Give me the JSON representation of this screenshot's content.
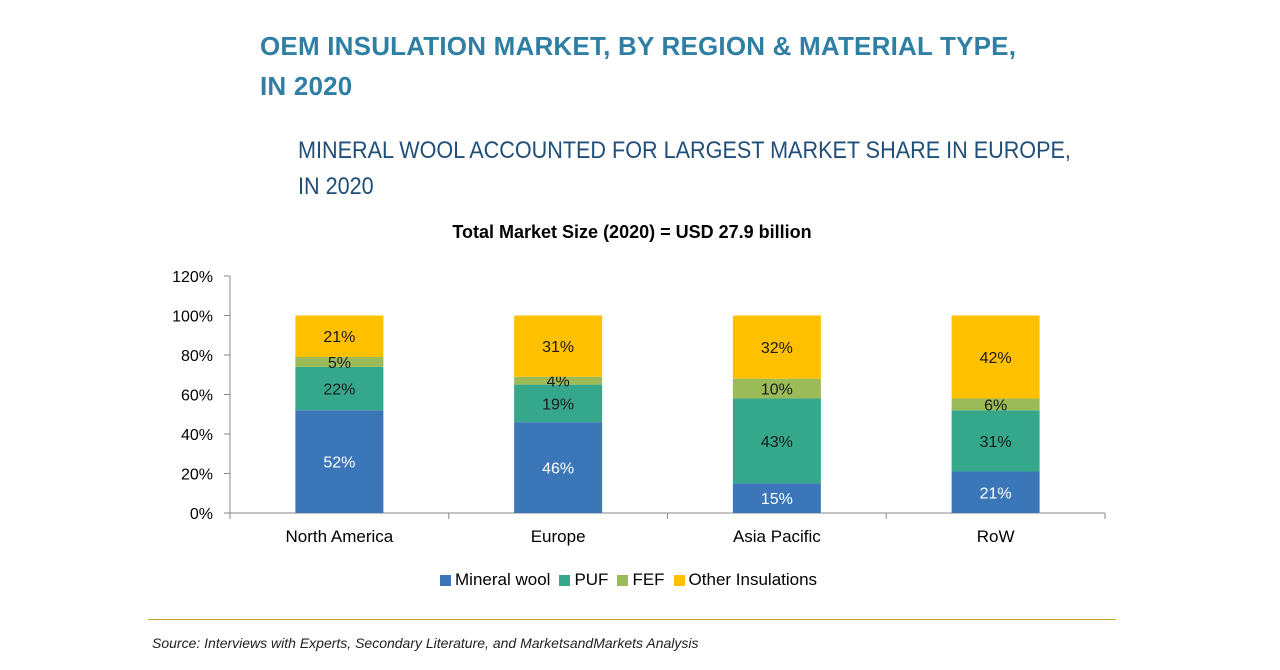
{
  "header": {
    "title_line1": "OEM INSULATION MARKET, BY REGION & MATERIAL TYPE,",
    "title_line2": "IN 2020",
    "subtitle_line1": "MINERAL WOOL ACCOUNTED FOR LARGEST MARKET SHARE IN EUROPE,",
    "subtitle_line2": "IN 2020"
  },
  "chart_data": {
    "type": "bar",
    "stacked": true,
    "title": "Total Market Size (2020) = USD 27.9 billion",
    "xlabel": "",
    "ylabel": "",
    "ylim": [
      0,
      120
    ],
    "yticks": [
      "0%",
      "20%",
      "40%",
      "60%",
      "80%",
      "100%",
      "120%"
    ],
    "categories": [
      "North America",
      "Europe",
      "Asia Pacific",
      "RoW"
    ],
    "series": [
      {
        "name": "Mineral wool",
        "color": "#3b77b8",
        "values": [
          52,
          46,
          15,
          21
        ],
        "labels": [
          "52%",
          "46%",
          "15%",
          "21%"
        ]
      },
      {
        "name": "PUF",
        "color": "#35a88c",
        "values": [
          22,
          19,
          43,
          31
        ],
        "labels": [
          "22%",
          "19%",
          "43%",
          "31%"
        ]
      },
      {
        "name": "FEF",
        "color": "#9bbb59",
        "values": [
          5,
          4,
          10,
          6
        ],
        "labels": [
          "5%",
          "4%",
          "10%",
          "6%"
        ]
      },
      {
        "name": "Other Insulations",
        "color": "#ffc000",
        "values": [
          21,
          31,
          32,
          42
        ],
        "labels": [
          "21%",
          "31%",
          "32%",
          "42%"
        ]
      }
    ],
    "grid": false,
    "legend_position": "bottom"
  },
  "footer": {
    "source": "Source: Interviews with Experts, Secondary Literature, and MarketsandMarkets Analysis"
  }
}
